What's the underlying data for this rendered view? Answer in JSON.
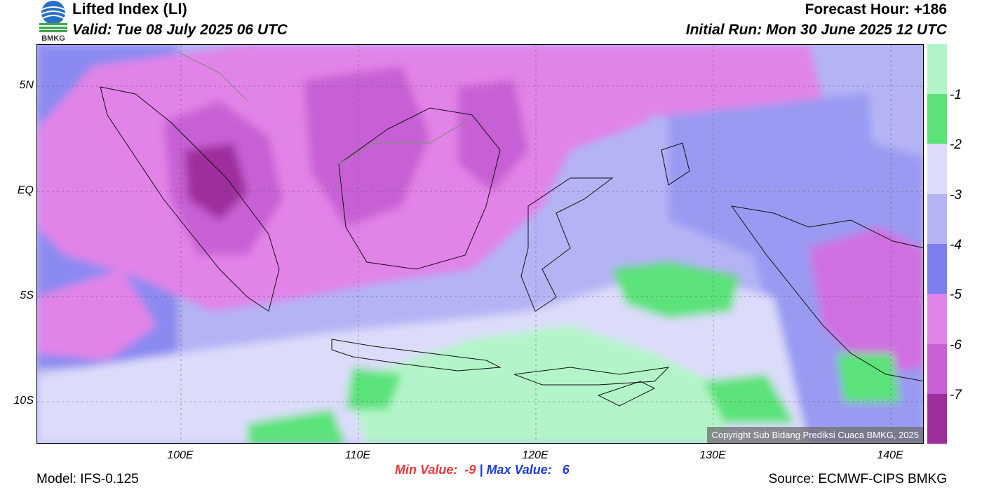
{
  "header": {
    "logo_text": "BMKG",
    "title": "Lifted Index (LI)",
    "valid": "Valid: Tue 08 July 2025 06 UTC",
    "forecast_hour": "Forecast Hour: +186",
    "initial_run": "Initial Run: Mon 30 June 2025 12 UTC"
  },
  "map": {
    "lat_labels": [
      "5N",
      "EQ",
      "5S",
      "10S"
    ],
    "lon_labels": [
      "100E",
      "110E",
      "120E",
      "130E",
      "140E"
    ],
    "copyright": "Copyright Sub Bidang Prediksi Cuaca BMKG, 2025"
  },
  "colorbar": {
    "labels": [
      "-1",
      "-2",
      "-3",
      "-4",
      "-5",
      "-6",
      "-7"
    ],
    "colors": [
      "#b3f5c8",
      "#5ce27a",
      "#dcdcfa",
      "#b4b4f5",
      "#7d7df0",
      "#e283e8",
      "#c760d4",
      "#9e2e9e"
    ]
  },
  "footer": {
    "model": "Model: IFS-0.125",
    "min_label": "Min Value:  -9",
    "separator": "|",
    "max_label": "Max Value:   6",
    "source": "Source: ECMWF-CIPS BMKG"
  }
}
